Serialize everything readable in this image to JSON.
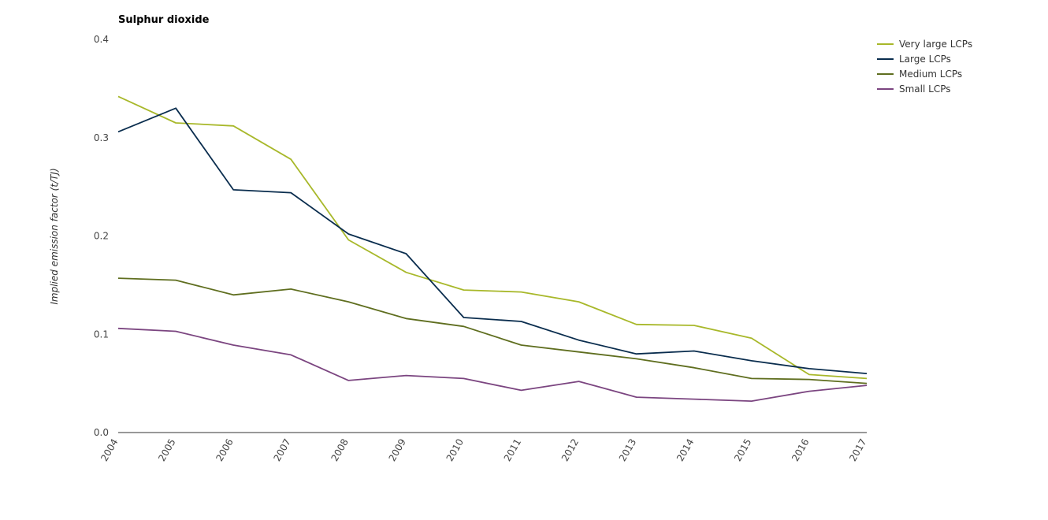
{
  "chart_data": {
    "type": "line",
    "title": "Sulphur dioxide",
    "xlabel": "",
    "ylabel": "Implied emission factor (t/TJ)",
    "x": [
      "2004",
      "2005",
      "2006",
      "2007",
      "2008",
      "2009",
      "2010",
      "2011",
      "2012",
      "2013",
      "2014",
      "2015",
      "2016",
      "2017"
    ],
    "ylim": [
      0,
      0.4
    ],
    "yticks": [
      "0.0",
      "0.1",
      "0.2",
      "0.3",
      "0.4"
    ],
    "grid": false,
    "legend_position": "top-right",
    "series": [
      {
        "name": "Very large LCPs",
        "color": "#a8b82a",
        "values": [
          0.342,
          0.315,
          0.312,
          0.278,
          0.196,
          0.163,
          0.145,
          0.143,
          0.133,
          0.11,
          0.109,
          0.096,
          0.059,
          0.055
        ]
      },
      {
        "name": "Large LCPs",
        "color": "#0a2d4e",
        "values": [
          0.306,
          0.33,
          0.247,
          0.244,
          0.202,
          0.182,
          0.117,
          0.113,
          0.094,
          0.08,
          0.083,
          0.073,
          0.065,
          0.06
        ]
      },
      {
        "name": "Medium LCPs",
        "color": "#5f6e1f",
        "values": [
          0.157,
          0.155,
          0.14,
          0.146,
          0.133,
          0.116,
          0.108,
          0.089,
          0.082,
          0.075,
          0.066,
          0.055,
          0.054,
          0.05
        ]
      },
      {
        "name": "Small LCPs",
        "color": "#7b4580",
        "values": [
          0.106,
          0.103,
          0.089,
          0.079,
          0.053,
          0.058,
          0.055,
          0.043,
          0.052,
          0.036,
          0.034,
          0.032,
          0.042,
          0.048
        ]
      }
    ]
  }
}
